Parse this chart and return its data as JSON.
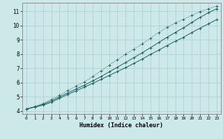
{
  "xlabel": "Humidex (Indice chaleur)",
  "bg_color": "#cce8e8",
  "grid_color": "#aacece",
  "line_color": "#1a6060",
  "xlim": [
    -0.5,
    23.5
  ],
  "ylim": [
    3.8,
    11.6
  ],
  "xticks": [
    0,
    1,
    2,
    3,
    4,
    5,
    6,
    7,
    8,
    9,
    10,
    11,
    12,
    13,
    14,
    15,
    16,
    17,
    18,
    19,
    20,
    21,
    22,
    23
  ],
  "yticks": [
    4,
    5,
    6,
    7,
    8,
    9,
    10,
    11
  ],
  "x_data": [
    0,
    1,
    2,
    3,
    4,
    5,
    6,
    7,
    8,
    9,
    10,
    11,
    12,
    13,
    14,
    15,
    16,
    17,
    18,
    19,
    20,
    21,
    22,
    23
  ],
  "line1": [
    4.15,
    4.28,
    4.42,
    4.62,
    4.9,
    5.18,
    5.42,
    5.68,
    5.95,
    6.22,
    6.5,
    6.78,
    7.05,
    7.35,
    7.65,
    7.98,
    8.28,
    8.6,
    8.9,
    9.18,
    9.52,
    9.82,
    10.12,
    10.42
  ],
  "line2": [
    4.15,
    4.3,
    4.48,
    4.72,
    5.0,
    5.28,
    5.55,
    5.82,
    6.12,
    6.42,
    6.75,
    7.08,
    7.42,
    7.75,
    8.1,
    8.45,
    8.82,
    9.18,
    9.52,
    9.85,
    10.22,
    10.58,
    10.9,
    11.18
  ],
  "line3": [
    4.15,
    4.32,
    4.55,
    4.82,
    5.12,
    5.45,
    5.75,
    6.05,
    6.42,
    6.82,
    7.22,
    7.62,
    8.0,
    8.35,
    8.72,
    9.12,
    9.52,
    9.88,
    10.18,
    10.45,
    10.72,
    10.98,
    11.18,
    11.38
  ]
}
